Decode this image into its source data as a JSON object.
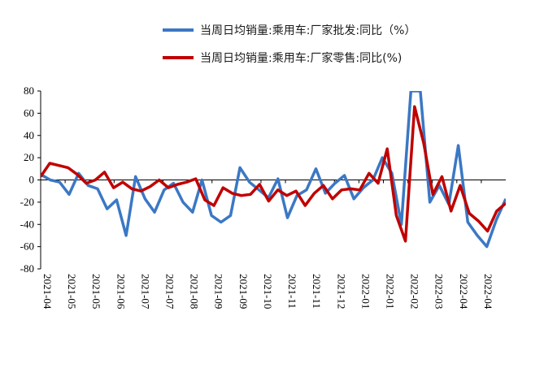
{
  "chart_data": {
    "type": "line",
    "title": "",
    "xlabel": "",
    "ylabel": "",
    "ylim": [
      -80,
      80
    ],
    "yticks": [
      80,
      60,
      40,
      20,
      0,
      -20,
      -40,
      -60,
      -80
    ],
    "grid": false,
    "legend_position": "top",
    "x_tick_labels": [
      "2021-04",
      "2021-05",
      "2021-05",
      "2021-06",
      "2021-07",
      "2021-07",
      "2021-08",
      "2021-09",
      "2021-09",
      "2021-10",
      "2021-11",
      "2021-11",
      "2021-12",
      "2022-01",
      "2022-01",
      "2022-02",
      "2022-03",
      "2022-04",
      "2022-04"
    ],
    "series": [
      {
        "name": "当周日均销量:乘用车:厂家批发:同比（%）",
        "color": "#3b78c4",
        "values": [
          5,
          0,
          -2,
          -13,
          6,
          -5,
          -8,
          -26,
          -18,
          -50,
          3,
          -17,
          -29,
          -9,
          -3,
          -20,
          -29,
          0,
          -32,
          -38,
          -32,
          11,
          -2,
          -9,
          -16,
          1,
          -34,
          -14,
          -9,
          10,
          -12,
          -3,
          4,
          -17,
          -7,
          0,
          20,
          6,
          -40,
          80,
          80,
          -20,
          -5,
          -22,
          31,
          -38,
          -50,
          -60,
          -36,
          -17
        ]
      },
      {
        "name": "当周日均销量:乘用车:厂家零售:同比(%)",
        "color": "#c00000",
        "values": [
          3,
          15,
          13,
          11,
          5,
          -3,
          0,
          7,
          -7,
          -2,
          -8,
          -10,
          -6,
          0,
          -7,
          -4,
          -2,
          1,
          -18,
          -23,
          -7,
          -12,
          -14,
          -13,
          -4,
          -19,
          -9,
          -14,
          -10,
          -23,
          -12,
          -5,
          -17,
          -9,
          -8,
          -9,
          6,
          -3,
          28,
          -32,
          -55,
          66,
          33,
          -13,
          3,
          -28,
          -5,
          -30,
          -37,
          -46,
          -28,
          -21
        ]
      }
    ]
  }
}
